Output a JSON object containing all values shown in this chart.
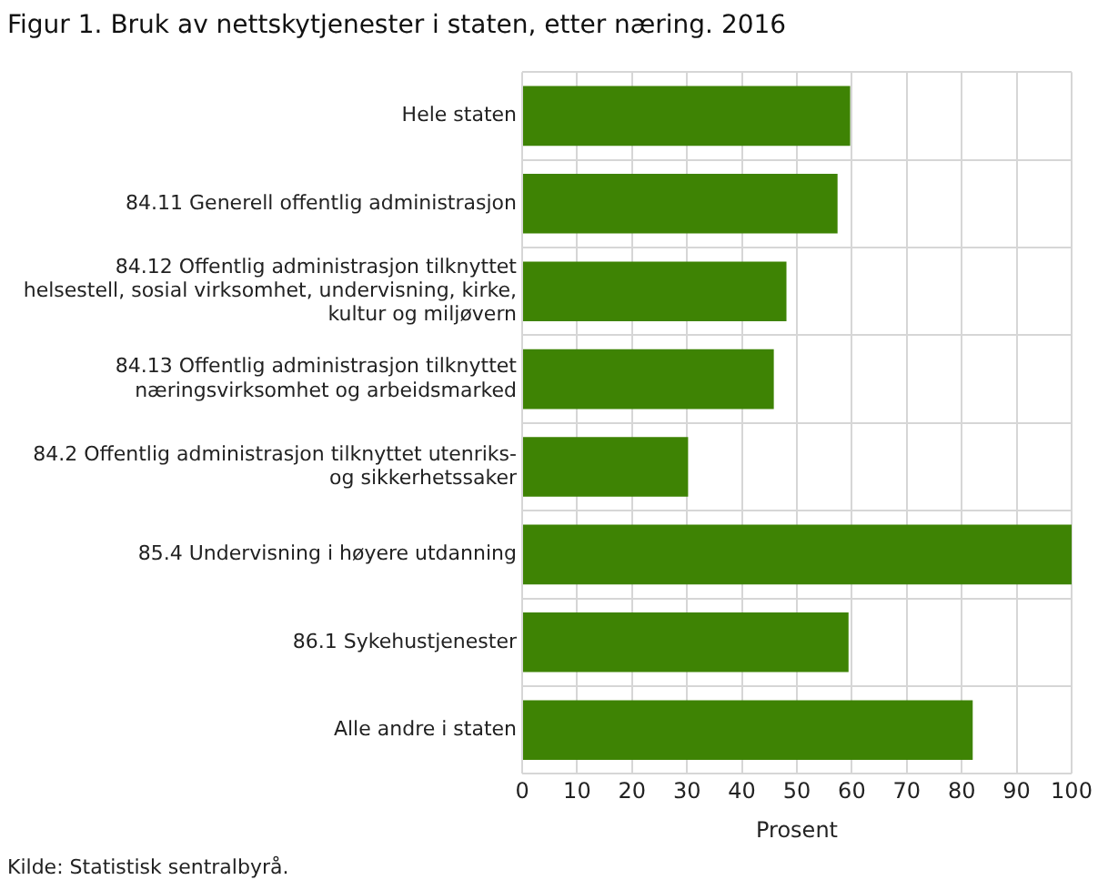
{
  "chart_data": {
    "type": "bar",
    "orientation": "horizontal",
    "title": "Figur 1. Bruk av nettskytjenester i staten, etter næring. 2016",
    "categories": [
      "Hele staten",
      "84.11 Generell offentlig administrasjon",
      "84.12 Offentlig administrasjon tilknyttet helsestell, sosial virksomhet, undervisning, kirke, kultur og miljøvern",
      "84.13 Offentlig administrasjon tilknyttet næringsvirksomhet og arbeidsmarked",
      "84.2 Offentlig administrasjon tilknyttet utenriks- og sikkerhetssaker",
      "85.4 Undervisning i høyere utdanning",
      "86.1 Sykehustjenester",
      "Alle andre i staten"
    ],
    "values": [
      59.7,
      57.4,
      48.1,
      45.8,
      30.2,
      100,
      59.4,
      82
    ],
    "color": "#3e8304",
    "xlabel": "Prosent",
    "xlim": [
      0,
      100
    ],
    "xticks": [
      0,
      10,
      20,
      30,
      40,
      50,
      60,
      70,
      80,
      90,
      100
    ],
    "grid": true,
    "annotations": [
      "Kilde: Statistisk sentralbyrå."
    ]
  }
}
